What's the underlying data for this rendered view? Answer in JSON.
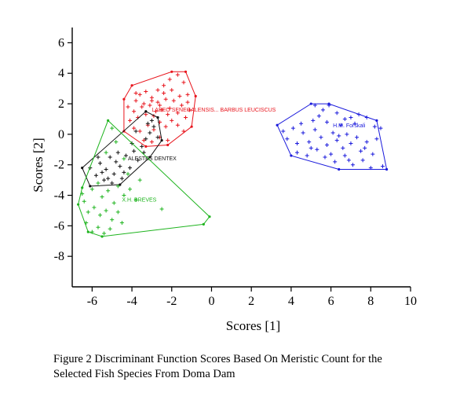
{
  "chart_data": {
    "type": "scatter",
    "xlabel": "Scores [1]",
    "ylabel": "Scores [2]",
    "xlim": [
      -7,
      10
    ],
    "ylim": [
      -10,
      7
    ],
    "xticks": [
      -6,
      -4,
      -2,
      0,
      2,
      4,
      6,
      8,
      10
    ],
    "yticks": [
      -8,
      -6,
      -4,
      -2,
      0,
      2,
      4,
      6
    ],
    "grid": false,
    "marker": "+",
    "groups": [
      {
        "label": "LABEO SENEGALENSIS... BARBUS LEUCISCUS",
        "color": "#e8141c",
        "hull": [
          [
            -1.3,
            4.1
          ],
          [
            -2.0,
            4.1
          ],
          [
            -4.0,
            3.2
          ],
          [
            -4.4,
            2.3
          ],
          [
            -4.4,
            0.2
          ],
          [
            -3.3,
            -0.8
          ],
          [
            -2.2,
            -0.7
          ],
          [
            -1.0,
            0.5
          ],
          [
            -0.8,
            2.5
          ]
        ],
        "points": [
          [
            -3.8,
            2.2
          ],
          [
            -3.6,
            2.6
          ],
          [
            -3.3,
            2.8
          ],
          [
            -3.0,
            2.4
          ],
          [
            -2.7,
            2.9
          ],
          [
            -2.4,
            3.2
          ],
          [
            -2.1,
            3.6
          ],
          [
            -1.7,
            3.9
          ],
          [
            -1.4,
            3.4
          ],
          [
            -1.2,
            2.6
          ],
          [
            -3.9,
            1.5
          ],
          [
            -3.7,
            1.1
          ],
          [
            -3.5,
            1.8
          ],
          [
            -3.3,
            1.3
          ],
          [
            -3.1,
            1.9
          ],
          [
            -2.9,
            1.2
          ],
          [
            -2.7,
            2.1
          ],
          [
            -2.5,
            1.6
          ],
          [
            -2.3,
            2.3
          ],
          [
            -2.1,
            1.7
          ],
          [
            -1.9,
            2.2
          ],
          [
            -1.7,
            1.4
          ],
          [
            -1.5,
            1.9
          ],
          [
            -1.3,
            1.1
          ],
          [
            -1.1,
            1.6
          ],
          [
            -3.9,
            0.4
          ],
          [
            -3.6,
            0.2
          ],
          [
            -3.2,
            0.6
          ],
          [
            -2.9,
            0.3
          ],
          [
            -2.6,
            0.8
          ],
          [
            -2.3,
            0.5
          ],
          [
            -2.0,
            0.9
          ],
          [
            -1.7,
            0.6
          ],
          [
            -1.4,
            0.2
          ],
          [
            -3.4,
            -0.4
          ],
          [
            -3.0,
            -0.5
          ],
          [
            -2.6,
            -0.2
          ],
          [
            -2.2,
            -0.4
          ],
          [
            -4.2,
            1.8
          ],
          [
            -4.1,
            0.9
          ],
          [
            -3.8,
            2.7
          ],
          [
            -3.4,
            2.0
          ],
          [
            -2.8,
            1.5
          ],
          [
            -2.4,
            2.7
          ],
          [
            -2.0,
            2.9
          ],
          [
            -1.6,
            2.5
          ],
          [
            -1.2,
            2.1
          ],
          [
            -3.0,
            2.2
          ],
          [
            -2.6,
            1.9
          ],
          [
            -2.2,
            1.3
          ]
        ]
      },
      {
        "label": "ALESTES DENTEX",
        "color": "#111111",
        "hull": [
          [
            -2.7,
            1.1
          ],
          [
            -3.3,
            1.5
          ],
          [
            -6.5,
            -2.2
          ],
          [
            -6.1,
            -3.4
          ],
          [
            -4.6,
            -3.3
          ],
          [
            -3.1,
            -1.5
          ],
          [
            -2.5,
            -0.4
          ]
        ],
        "points": [
          [
            -6.1,
            -2.2
          ],
          [
            -5.8,
            -2.7
          ],
          [
            -5.6,
            -1.9
          ],
          [
            -5.4,
            -3.0
          ],
          [
            -5.3,
            -2.3
          ],
          [
            -5.1,
            -1.5
          ],
          [
            -4.9,
            -2.6
          ],
          [
            -4.8,
            -1.8
          ],
          [
            -4.6,
            -2.1
          ],
          [
            -4.5,
            -2.9
          ],
          [
            -4.3,
            -1.4
          ],
          [
            -4.1,
            -2.2
          ],
          [
            -3.9,
            -1.1
          ],
          [
            -3.7,
            -1.7
          ],
          [
            -3.5,
            -0.8
          ],
          [
            -3.3,
            -0.3
          ],
          [
            -3.1,
            0.1
          ],
          [
            -2.9,
            0.5
          ],
          [
            -2.7,
            -0.2
          ],
          [
            -3.0,
            0.9
          ],
          [
            -5.7,
            -1.5
          ],
          [
            -5.0,
            -3.2
          ],
          [
            -4.4,
            -2.5
          ],
          [
            -5.5,
            -2.5
          ],
          [
            -4.0,
            -0.6
          ],
          [
            -3.4,
            -1.2
          ],
          [
            -4.7,
            -1.2
          ],
          [
            -5.2,
            -2.9
          ],
          [
            -3.8,
            0.2
          ],
          [
            -3.2,
            0.7
          ]
        ]
      },
      {
        "label": "X.H. BREVES",
        "color": "#1eb41e",
        "hull": [
          [
            -5.2,
            0.9
          ],
          [
            -0.1,
            -5.4
          ],
          [
            -0.4,
            -5.9
          ],
          [
            -5.5,
            -6.7
          ],
          [
            -6.2,
            -6.4
          ],
          [
            -6.7,
            -4.6
          ],
          [
            -6.5,
            -3.5
          ]
        ],
        "points": [
          [
            -5.0,
            0.4
          ],
          [
            -4.8,
            -0.5
          ],
          [
            -5.3,
            -1.2
          ],
          [
            -4.4,
            -1.6
          ],
          [
            -6.0,
            -3.6
          ],
          [
            -5.7,
            -3.2
          ],
          [
            -5.5,
            -4.1
          ],
          [
            -5.2,
            -3.7
          ],
          [
            -4.9,
            -4.5
          ],
          [
            -4.7,
            -3.4
          ],
          [
            -4.4,
            -4.0
          ],
          [
            -4.1,
            -3.6
          ],
          [
            -3.8,
            -4.3
          ],
          [
            -5.9,
            -4.8
          ],
          [
            -5.6,
            -5.3
          ],
          [
            -5.3,
            -5.0
          ],
          [
            -5.0,
            -5.6
          ],
          [
            -4.7,
            -5.1
          ],
          [
            -6.3,
            -5.8
          ],
          [
            -6.0,
            -6.4
          ],
          [
            -5.7,
            -6.1
          ],
          [
            -5.4,
            -6.5
          ],
          [
            -5.1,
            -6.2
          ],
          [
            -6.4,
            -4.4
          ],
          [
            -6.2,
            -5.1
          ],
          [
            -2.5,
            -4.9
          ],
          [
            -3.6,
            -3.0
          ],
          [
            -4.2,
            -2.6
          ],
          [
            -6.5,
            -3.9
          ],
          [
            -4.5,
            -5.8
          ]
        ]
      },
      {
        "label": "H.M. Forskali",
        "color": "#1a1adc",
        "hull": [
          [
            5.0,
            2.0
          ],
          [
            5.9,
            2.0
          ],
          [
            8.3,
            0.9
          ],
          [
            8.8,
            -2.3
          ],
          [
            6.4,
            -2.3
          ],
          [
            4.0,
            -1.4
          ],
          [
            3.3,
            0.6
          ]
        ],
        "points": [
          [
            5.2,
            1.9
          ],
          [
            5.6,
            1.6
          ],
          [
            5.9,
            1.9
          ],
          [
            5.4,
            1.2
          ],
          [
            5.1,
            0.9
          ],
          [
            5.8,
            0.8
          ],
          [
            6.3,
            1.4
          ],
          [
            6.7,
            1.0
          ],
          [
            7.4,
            1.3
          ],
          [
            7.8,
            1.1
          ],
          [
            3.6,
            0.2
          ],
          [
            3.8,
            -0.3
          ],
          [
            4.1,
            0.4
          ],
          [
            4.3,
            -0.6
          ],
          [
            4.6,
            0.1
          ],
          [
            4.9,
            -0.5
          ],
          [
            5.2,
            0.3
          ],
          [
            5.5,
            -0.2
          ],
          [
            5.8,
            -0.7
          ],
          [
            6.1,
            0.1
          ],
          [
            6.3,
            -0.4
          ],
          [
            6.6,
            -0.9
          ],
          [
            6.8,
            0.0
          ],
          [
            7.0,
            -0.6
          ],
          [
            7.3,
            -0.2
          ],
          [
            7.5,
            -1.1
          ],
          [
            7.8,
            -0.5
          ],
          [
            8.1,
            -1.3
          ],
          [
            8.3,
            -0.3
          ],
          [
            8.5,
            0.4
          ],
          [
            4.3,
            -1.2
          ],
          [
            4.8,
            -1.4
          ],
          [
            5.3,
            -1.0
          ],
          [
            5.7,
            -1.5
          ],
          [
            6.2,
            -1.8
          ],
          [
            6.7,
            -1.4
          ],
          [
            7.1,
            -2.0
          ],
          [
            7.6,
            -1.7
          ],
          [
            8.0,
            -2.2
          ],
          [
            8.6,
            -2.1
          ],
          [
            6.5,
            0.6
          ],
          [
            6.9,
            -1.7
          ],
          [
            7.2,
            0.7
          ],
          [
            5.0,
            -0.9
          ],
          [
            6.0,
            -1.3
          ],
          [
            7.7,
            -0.9
          ],
          [
            8.2,
            0.5
          ],
          [
            4.5,
            0.7
          ],
          [
            6.4,
            -0.1
          ],
          [
            7.0,
            1.1
          ]
        ]
      }
    ]
  },
  "caption": {
    "line1": "Figure 2 Discriminant Function Scores Based On Meristic Count for the",
    "line2": "Selected Fish Species From Doma Dam"
  },
  "labels": {
    "group0": "LABEO SENEGALENSIS... BARBUS LEUCISCUS",
    "group1": "ALESTES DENTEX",
    "group2": "X.H. BREVES",
    "group3": "H.M. Forskali"
  }
}
